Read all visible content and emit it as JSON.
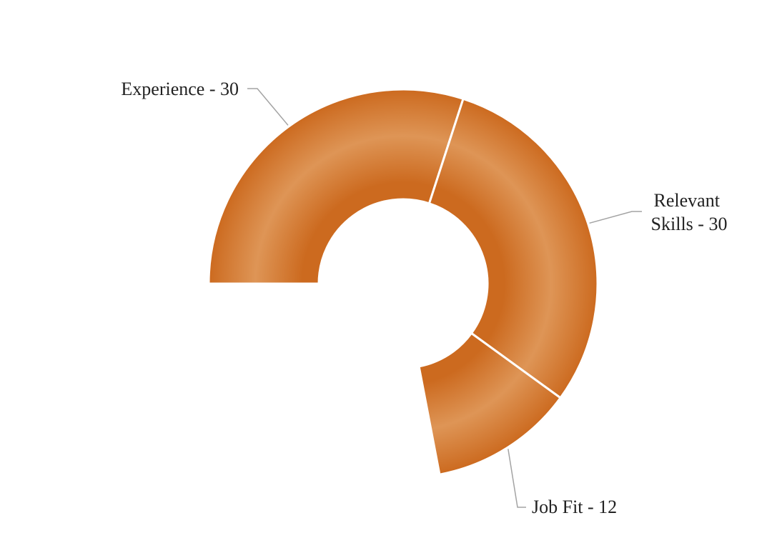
{
  "chart_data": {
    "type": "pie",
    "variant": "donut",
    "scale_max": 100,
    "start_angle_degrees": 270,
    "direction": "clockwise",
    "slices": [
      {
        "label": "Experience",
        "value": 30,
        "display": "Experience - 30"
      },
      {
        "label": "Relevant Skills",
        "value": 30,
        "display_lines": [
          "Relevant",
          "Skills - 30"
        ]
      },
      {
        "label": "Job Fit",
        "value": 12,
        "display": "Job Fit - 12"
      }
    ],
    "colors": {
      "edge": "#cc6a1f",
      "mid": "#de9556",
      "separator": "#ffffff",
      "leader": "#a3a3a3"
    },
    "legend": "none"
  }
}
